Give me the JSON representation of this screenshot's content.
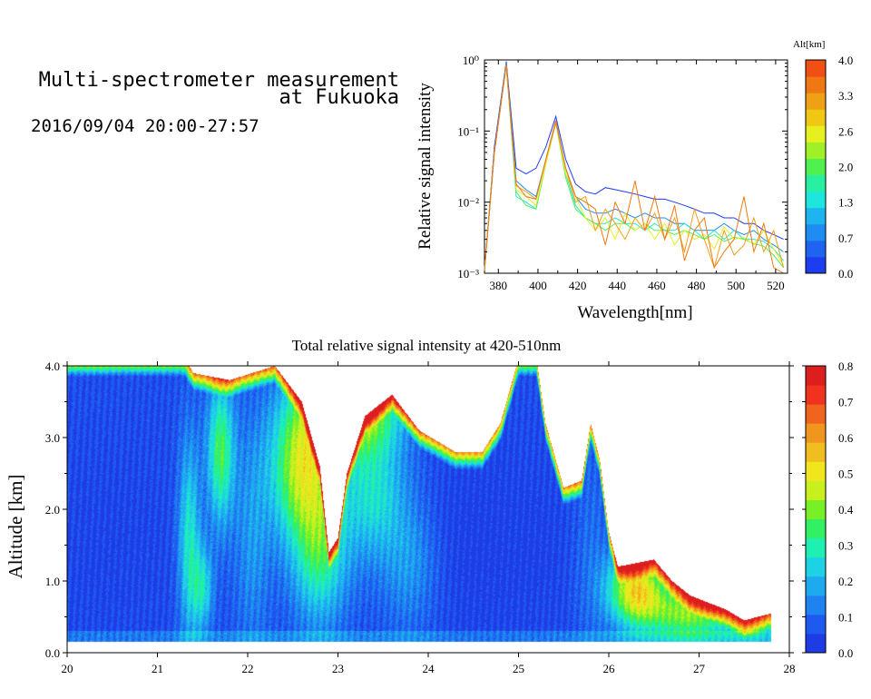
{
  "header": {
    "title_line1": "Multi-spectrometer measurement",
    "title_line2": "at Fukuoka",
    "datetime": "2016/09/04 20:00-27:57"
  },
  "chart_data": [
    {
      "type": "line",
      "xlabel": "Wavelength[nm]",
      "ylabel": "Relative signal intensity",
      "yscale": "log",
      "xlim": [
        373,
        526
      ],
      "ylim": [
        0.001,
        1
      ],
      "x_ticks": [
        "380",
        "400",
        "420",
        "440",
        "460",
        "480",
        "500",
        "520"
      ],
      "y_ticks": [
        "10⁻³",
        "10⁻²",
        "10⁻¹",
        "10⁰"
      ],
      "colorbar": {
        "label": "Alt[km]",
        "ticks": [
          "0.0",
          "0.7",
          "1.3",
          "2.0",
          "2.6",
          "3.3",
          "4.0"
        ],
        "colors": [
          "#1e3cf0",
          "#1e64f0",
          "#1e8cf0",
          "#1eb4f0",
          "#1ee6dc",
          "#28f0a0",
          "#50f050",
          "#a0f028",
          "#e6f01e",
          "#f0c814",
          "#f0a014",
          "#f07814",
          "#f05014"
        ]
      },
      "x": [
        373,
        378,
        384,
        389,
        394,
        399,
        404,
        409,
        414,
        419,
        424,
        429,
        434,
        439,
        444,
        449,
        454,
        459,
        464,
        469,
        474,
        479,
        484,
        489,
        494,
        499,
        504,
        509,
        514,
        519,
        524
      ],
      "series": [
        {
          "color": "#1e3cf0",
          "values": [
            0.0011,
            0.06,
            0.95,
            0.03,
            0.025,
            0.03,
            0.06,
            0.16,
            0.04,
            0.018,
            0.014,
            0.013,
            0.016,
            0.015,
            0.014,
            0.013,
            0.012,
            0.011,
            0.011,
            0.01,
            0.009,
            0.008,
            0.007,
            0.007,
            0.006,
            0.006,
            0.005,
            0.005,
            0.004,
            0.0035,
            0.003
          ]
        },
        {
          "color": "#1e8cf0",
          "values": [
            0.0011,
            0.05,
            0.9,
            0.02,
            0.015,
            0.012,
            0.04,
            0.14,
            0.03,
            0.012,
            0.008,
            0.007,
            0.007,
            0.008,
            0.007,
            0.006,
            0.007,
            0.006,
            0.006,
            0.005,
            0.005,
            0.004,
            0.004,
            0.004,
            0.005,
            0.004,
            0.0035,
            0.004,
            0.003,
            0.0025,
            0.002
          ]
        },
        {
          "color": "#1ee6dc",
          "values": [
            0.0011,
            0.05,
            0.85,
            0.012,
            0.01,
            0.008,
            0.035,
            0.13,
            0.025,
            0.009,
            0.006,
            0.005,
            0.005,
            0.006,
            0.005,
            0.005,
            0.004,
            0.005,
            0.004,
            0.004,
            0.005,
            0.004,
            0.003,
            0.004,
            0.003,
            0.004,
            0.003,
            0.003,
            0.0028,
            0.0022,
            0.0015
          ]
        },
        {
          "color": "#50f050",
          "values": [
            0.0011,
            0.05,
            0.85,
            0.014,
            0.009,
            0.008,
            0.035,
            0.13,
            0.022,
            0.008,
            0.006,
            0.005,
            0.004,
            0.005,
            0.005,
            0.004,
            0.005,
            0.004,
            0.004,
            0.0035,
            0.004,
            0.0035,
            0.003,
            0.0035,
            0.0028,
            0.0032,
            0.003,
            0.0026,
            0.0024,
            0.0018,
            0.0012
          ]
        },
        {
          "color": "#e6f01e",
          "values": [
            0.0011,
            0.05,
            0.85,
            0.015,
            0.012,
            0.009,
            0.035,
            0.13,
            0.025,
            0.012,
            0.006,
            0.004,
            0.006,
            0.003,
            0.007,
            0.004,
            0.005,
            0.003,
            0.005,
            0.0025,
            0.004,
            0.003,
            0.0035,
            0.0022,
            0.0045,
            0.003,
            0.0032,
            0.0025,
            0.004,
            0.0022,
            0.0013
          ]
        },
        {
          "color": "#f0a014",
          "values": [
            0.0011,
            0.05,
            0.85,
            0.017,
            0.014,
            0.011,
            0.04,
            0.13,
            0.03,
            0.01,
            0.012,
            0.004,
            0.008,
            0.005,
            0.003,
            0.006,
            0.004,
            0.007,
            0.003,
            0.006,
            0.002,
            0.008,
            0.003,
            0.0012,
            0.004,
            0.0018,
            0.0025,
            0.006,
            0.002,
            0.004,
            0.0012
          ]
        },
        {
          "color": "#f07814",
          "values": [
            0.0011,
            0.05,
            0.85,
            0.018,
            0.012,
            0.011,
            0.04,
            0.14,
            0.03,
            0.012,
            0.01,
            0.008,
            0.0025,
            0.01,
            0.005,
            0.02,
            0.004,
            0.012,
            0.003,
            0.009,
            0.0015,
            0.004,
            0.006,
            0.0012,
            0.002,
            0.003,
            0.012,
            0.002,
            0.005,
            0.0012,
            0.001
          ]
        }
      ]
    },
    {
      "type": "heatmap",
      "title": "Total relative signal intensity at 420-510nm",
      "ylabel": "Altitude [km]",
      "xlim": [
        20,
        28
      ],
      "ylim": [
        0,
        4
      ],
      "x_ticks": [
        "20",
        "21",
        "22",
        "23",
        "24",
        "25",
        "26",
        "27",
        "28"
      ],
      "y_ticks": [
        "0.0",
        "1.0",
        "2.0",
        "3.0",
        "4.0"
      ],
      "colorbar": {
        "ticks": [
          "0.0",
          "0.1",
          "0.2",
          "0.3",
          "0.4",
          "0.5",
          "0.6",
          "0.7",
          "0.8"
        ],
        "colors": [
          "#1e3ce6",
          "#1e5af0",
          "#1e82f0",
          "#1eaaf0",
          "#1ed2e6",
          "#1ef0b4",
          "#32f064",
          "#78f028",
          "#c8f01e",
          "#f0e61e",
          "#f0be1e",
          "#f0961e",
          "#f0641e",
          "#f0321e",
          "#dc1e1e"
        ],
        "vmin": 0,
        "vmax": 0.8
      },
      "data_time_range": [
        20.0,
        27.8
      ],
      "data_alt_range": [
        0.15,
        4.0
      ],
      "blob_features": [
        {
          "t": 20.5,
          "a": 1.5,
          "st": 0.9,
          "sa": 1.6,
          "v": -0.02
        },
        {
          "t": 21.35,
          "a": 1.6,
          "st": 0.12,
          "sa": 1.4,
          "v": 0.22
        },
        {
          "t": 21.7,
          "a": 2.8,
          "st": 0.15,
          "sa": 1.0,
          "v": 0.3
        },
        {
          "t": 21.5,
          "a": 0.9,
          "st": 0.12,
          "sa": 0.6,
          "v": 0.2
        },
        {
          "t": 22.05,
          "a": 1.6,
          "st": 0.2,
          "sa": 1.6,
          "v": 0.1
        },
        {
          "t": 22.6,
          "a": 2.6,
          "st": 0.35,
          "sa": 1.0,
          "v": 0.38
        },
        {
          "t": 22.8,
          "a": 1.4,
          "st": 0.3,
          "sa": 1.0,
          "v": 0.25
        },
        {
          "t": 23.15,
          "a": 3.4,
          "st": 0.5,
          "sa": 0.6,
          "v": 0.45
        },
        {
          "t": 23.4,
          "a": 2.2,
          "st": 0.35,
          "sa": 0.9,
          "v": 0.2
        },
        {
          "t": 23.8,
          "a": 1.2,
          "st": 0.3,
          "sa": 0.9,
          "v": 0.1
        },
        {
          "t": 24.5,
          "a": 1.5,
          "st": 0.6,
          "sa": 1.6,
          "v": -0.03
        },
        {
          "t": 25.3,
          "a": 1.5,
          "st": 0.4,
          "sa": 1.4,
          "v": -0.02
        },
        {
          "t": 25.8,
          "a": 1.5,
          "st": 0.2,
          "sa": 1.5,
          "v": 0.05
        },
        {
          "t": 26.3,
          "a": 0.9,
          "st": 0.3,
          "sa": 0.5,
          "v": 0.45
        },
        {
          "t": 26.9,
          "a": 0.55,
          "st": 0.5,
          "sa": 0.4,
          "v": 0.35
        },
        {
          "t": 27.6,
          "a": 0.35,
          "st": 0.3,
          "sa": 0.25,
          "v": 0.15
        }
      ],
      "mask_boundary": [
        {
          "t": 20.0,
          "a": 4.1
        },
        {
          "t": 21.3,
          "a": 4.1
        },
        {
          "t": 21.4,
          "a": 3.9
        },
        {
          "t": 21.8,
          "a": 3.8
        },
        {
          "t": 22.3,
          "a": 4.0
        },
        {
          "t": 22.6,
          "a": 3.5
        },
        {
          "t": 22.8,
          "a": 2.6
        },
        {
          "t": 22.9,
          "a": 1.4
        },
        {
          "t": 23.0,
          "a": 1.6
        },
        {
          "t": 23.1,
          "a": 2.5
        },
        {
          "t": 23.3,
          "a": 3.3
        },
        {
          "t": 23.6,
          "a": 3.6
        },
        {
          "t": 23.9,
          "a": 3.1
        },
        {
          "t": 24.3,
          "a": 2.8
        },
        {
          "t": 24.6,
          "a": 2.8
        },
        {
          "t": 24.8,
          "a": 3.2
        },
        {
          "t": 25.0,
          "a": 4.1
        },
        {
          "t": 25.2,
          "a": 4.1
        },
        {
          "t": 25.3,
          "a": 3.2
        },
        {
          "t": 25.5,
          "a": 2.3
        },
        {
          "t": 25.7,
          "a": 2.4
        },
        {
          "t": 25.8,
          "a": 3.2
        },
        {
          "t": 25.9,
          "a": 2.7
        },
        {
          "t": 26.0,
          "a": 1.7
        },
        {
          "t": 26.1,
          "a": 1.2
        },
        {
          "t": 26.5,
          "a": 1.3
        },
        {
          "t": 26.7,
          "a": 1.0
        },
        {
          "t": 26.9,
          "a": 0.8
        },
        {
          "t": 27.3,
          "a": 0.6
        },
        {
          "t": 27.5,
          "a": 0.45
        },
        {
          "t": 27.8,
          "a": 0.55
        }
      ]
    }
  ]
}
